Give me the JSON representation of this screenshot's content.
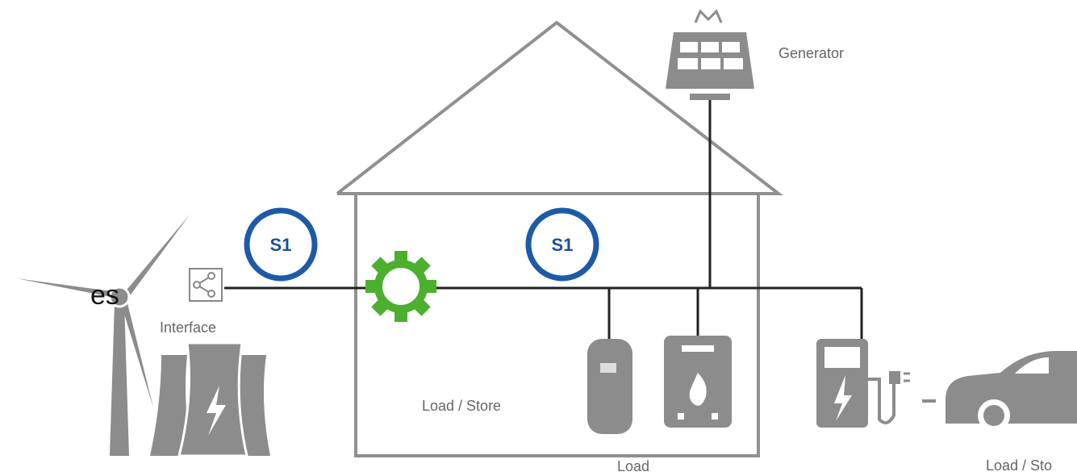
{
  "edge_text": "es",
  "nodes": [
    {
      "label": "Generator"
    },
    {
      "label": "Interface"
    },
    {
      "label": "S1"
    },
    {
      "label": "S1"
    },
    {
      "label": "Load / Store"
    },
    {
      "label": "Load"
    },
    {
      "label": "Load / Sto"
    }
  ]
}
